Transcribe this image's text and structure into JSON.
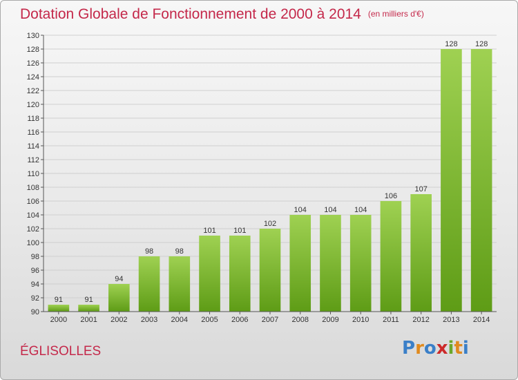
{
  "header": {
    "title": "Dotation Globale de Fonctionnement de 2000 à 2014",
    "subtitle": "(en milliers d'€)"
  },
  "commune": "ÉGLISOLLES",
  "logo": {
    "letters": [
      "P",
      "r",
      "o",
      "x",
      "i",
      "t",
      "i"
    ],
    "colors": [
      "#3a7fc8",
      "#e08a1e",
      "#3a7fc8",
      "#cc2a2a",
      "#6aa82a",
      "#e08a1e",
      "#3a7fc8"
    ]
  },
  "chart_data": {
    "type": "bar",
    "categories": [
      "2000",
      "2001",
      "2002",
      "2003",
      "2004",
      "2005",
      "2006",
      "2007",
      "2008",
      "2009",
      "2010",
      "2011",
      "2012",
      "2013",
      "2014"
    ],
    "values": [
      91,
      91,
      94,
      98,
      98,
      101,
      101,
      102,
      104,
      104,
      104,
      106,
      107,
      128,
      128
    ],
    "ylim": [
      90,
      130
    ],
    "yticks": [
      90,
      92,
      94,
      96,
      98,
      100,
      102,
      104,
      106,
      108,
      110,
      112,
      114,
      116,
      118,
      120,
      122,
      124,
      126,
      128,
      130
    ],
    "grid": true,
    "bar_color": "#7cbf2e"
  }
}
